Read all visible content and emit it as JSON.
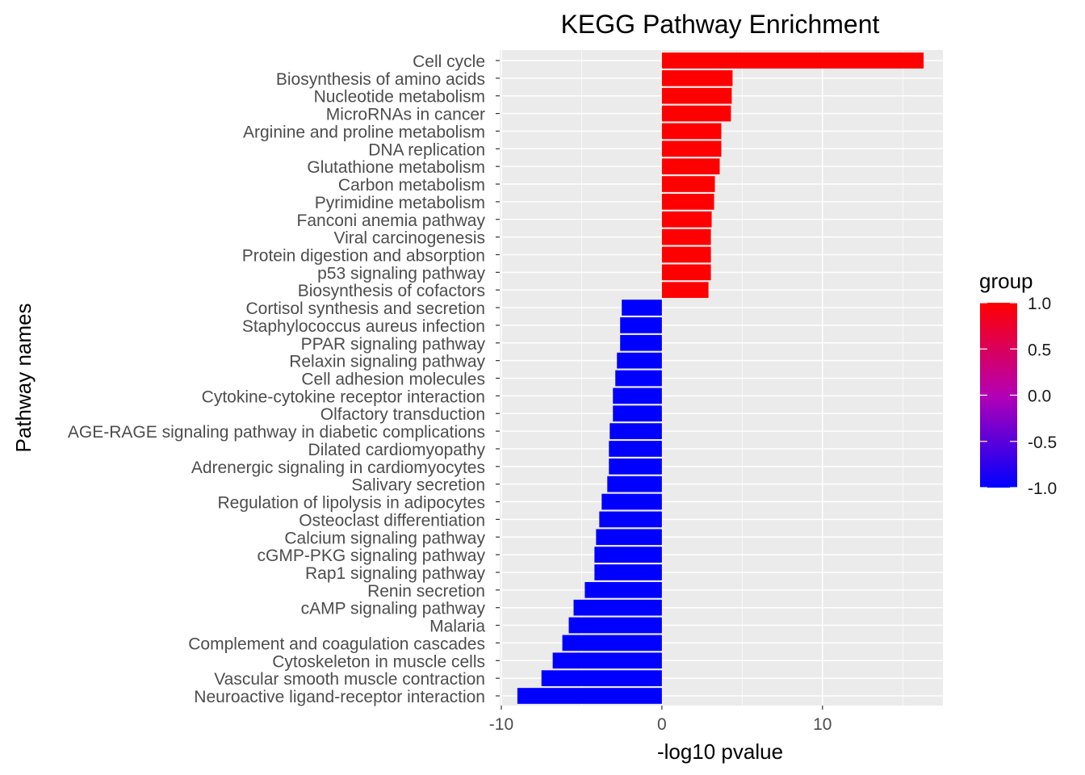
{
  "chart_data": {
    "type": "bar",
    "orientation": "horizontal",
    "title": "KEGG Pathway Enrichment",
    "xlabel": "-log10 pvalue",
    "ylabel": "Pathway names",
    "xlim": [
      -10.1,
      17.5
    ],
    "x_ticks": [
      -10,
      0,
      10
    ],
    "x_tick_labels": [
      "-10",
      "0",
      "10"
    ],
    "grid": true,
    "categories": [
      "Cell cycle",
      "Biosynthesis of amino acids",
      "Nucleotide metabolism",
      "MicroRNAs in cancer",
      "Arginine and proline metabolism",
      "DNA replication",
      "Glutathione metabolism",
      "Carbon metabolism",
      "Pyrimidine metabolism",
      "Fanconi anemia pathway",
      "Viral carcinogenesis",
      "Protein digestion and absorption",
      "p53 signaling pathway",
      "Biosynthesis of cofactors",
      "Cortisol synthesis and secretion",
      "Staphylococcus aureus infection",
      "PPAR signaling pathway",
      "Relaxin signaling pathway",
      "Cell adhesion molecules",
      "Cytokine-cytokine receptor interaction",
      "Olfactory transduction",
      "AGE-RAGE signaling pathway in diabetic complications",
      "Dilated cardiomyopathy",
      "Adrenergic signaling in cardiomyocytes",
      "Salivary secretion",
      "Regulation of lipolysis in adipocytes",
      "Osteoclast differentiation",
      "Calcium signaling pathway",
      "cGMP-PKG signaling pathway",
      "Rap1 signaling pathway",
      "Renin secretion",
      "cAMP signaling pathway",
      "Malaria",
      "Complement and coagulation cascades",
      "Cytoskeleton in muscle cells",
      "Vascular smooth muscle contraction",
      "Neuroactive ligand-receptor interaction"
    ],
    "values": [
      16.3,
      4.4,
      4.35,
      4.3,
      3.7,
      3.7,
      3.6,
      3.3,
      3.25,
      3.1,
      3.05,
      3.05,
      3.05,
      2.9,
      -2.5,
      -2.6,
      -2.6,
      -2.8,
      -2.9,
      -3.05,
      -3.05,
      -3.25,
      -3.3,
      -3.3,
      -3.4,
      -3.75,
      -3.9,
      -4.1,
      -4.2,
      -4.2,
      -4.8,
      -5.5,
      -5.8,
      -6.2,
      -6.8,
      -7.5,
      -9.0
    ],
    "group": [
      1,
      1,
      1,
      1,
      1,
      1,
      1,
      1,
      1,
      1,
      1,
      1,
      1,
      1,
      -1,
      -1,
      -1,
      -1,
      -1,
      -1,
      -1,
      -1,
      -1,
      -1,
      -1,
      -1,
      -1,
      -1,
      -1,
      -1,
      -1,
      -1,
      -1,
      -1,
      -1,
      -1,
      -1
    ],
    "legend": {
      "title": "group",
      "position": "right",
      "ticks": [
        "1.0",
        "0.5",
        "0.0",
        "-0.5",
        "-1.0"
      ],
      "high_color": "#FF0000",
      "low_color": "#0000FF"
    },
    "colors": {
      "panel_bg": "#EBEBEB",
      "grid": "#FFFFFF",
      "positive": "#FF0000",
      "negative": "#0000FF"
    }
  }
}
